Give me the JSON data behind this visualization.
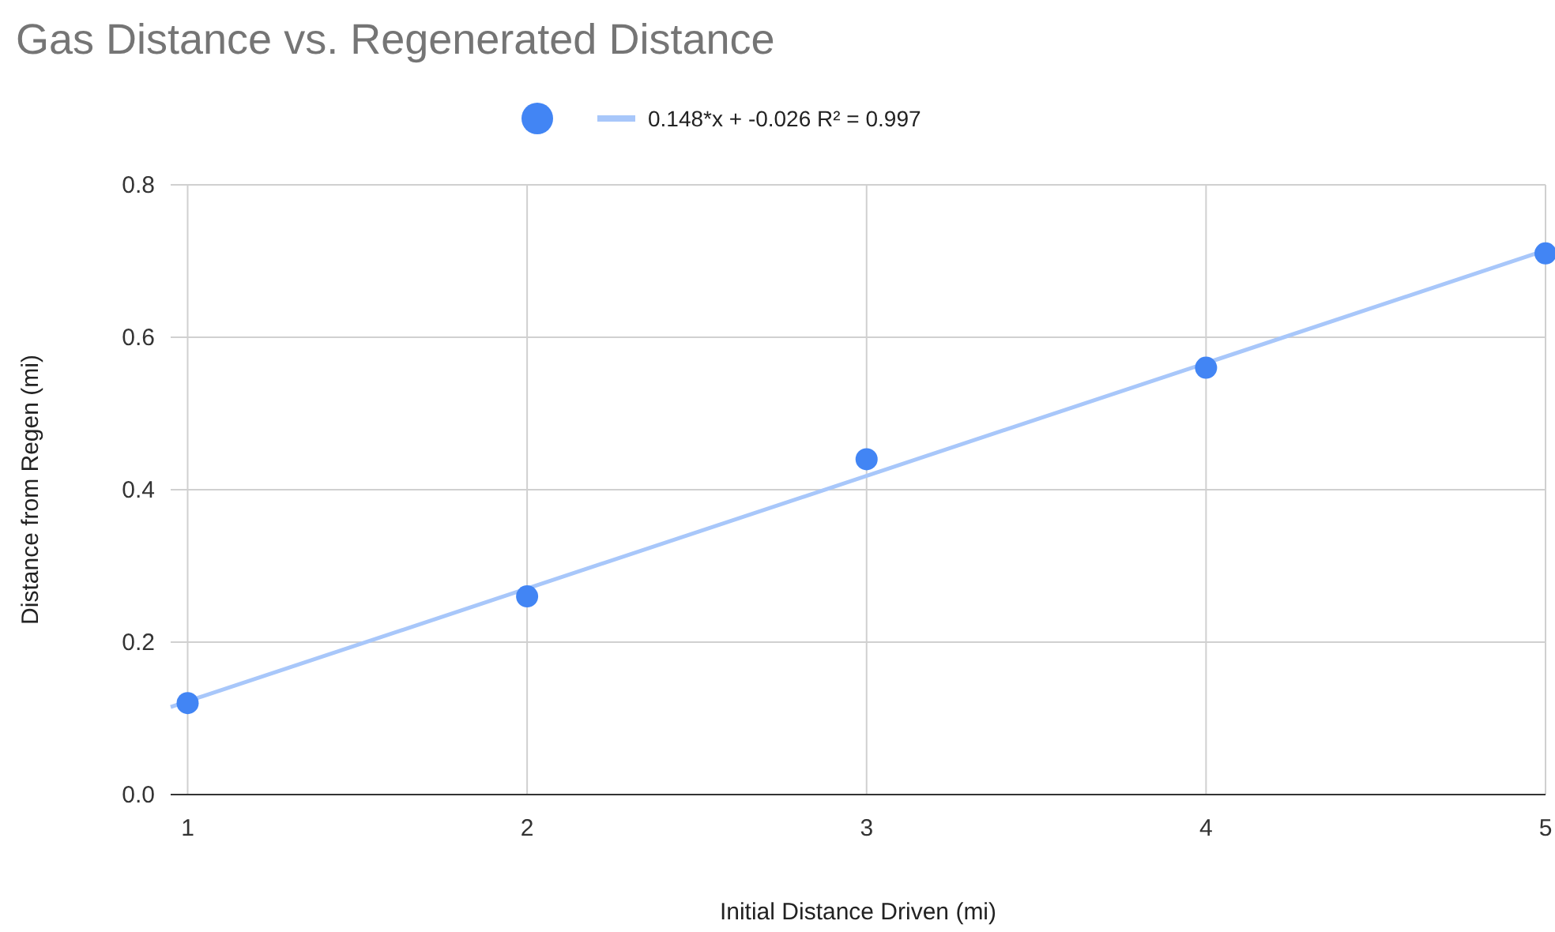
{
  "chart_data": {
    "type": "scatter",
    "title": "Gas Distance vs. Regenerated Distance",
    "xlabel": "Initial Distance Driven (mi)",
    "ylabel": "Distance from Regen (mi)",
    "xlim": [
      0.95,
      5
    ],
    "xticks": [
      1,
      2,
      3,
      4,
      5
    ],
    "ylim": [
      0,
      0.8
    ],
    "yticks": [
      {
        "value": 0,
        "label": "0.0"
      },
      0.2,
      0.4,
      0.6,
      0.8
    ],
    "grid": true,
    "legend": "top",
    "series": [
      {
        "color": "#4285f4",
        "marker": "circle",
        "x": [
          1,
          2,
          3,
          4,
          5
        ],
        "values": [
          0.12,
          0.26,
          0.44,
          0.56,
          0.71
        ]
      },
      {
        "type": "line",
        "name": "0.148*x + -0.026 R² = 0.997",
        "color": "#a8c7fa",
        "x": [
          0.95,
          5
        ],
        "values": [
          0.115,
          0.714
        ],
        "line_style": "solid",
        "marker": "none"
      }
    ]
  }
}
